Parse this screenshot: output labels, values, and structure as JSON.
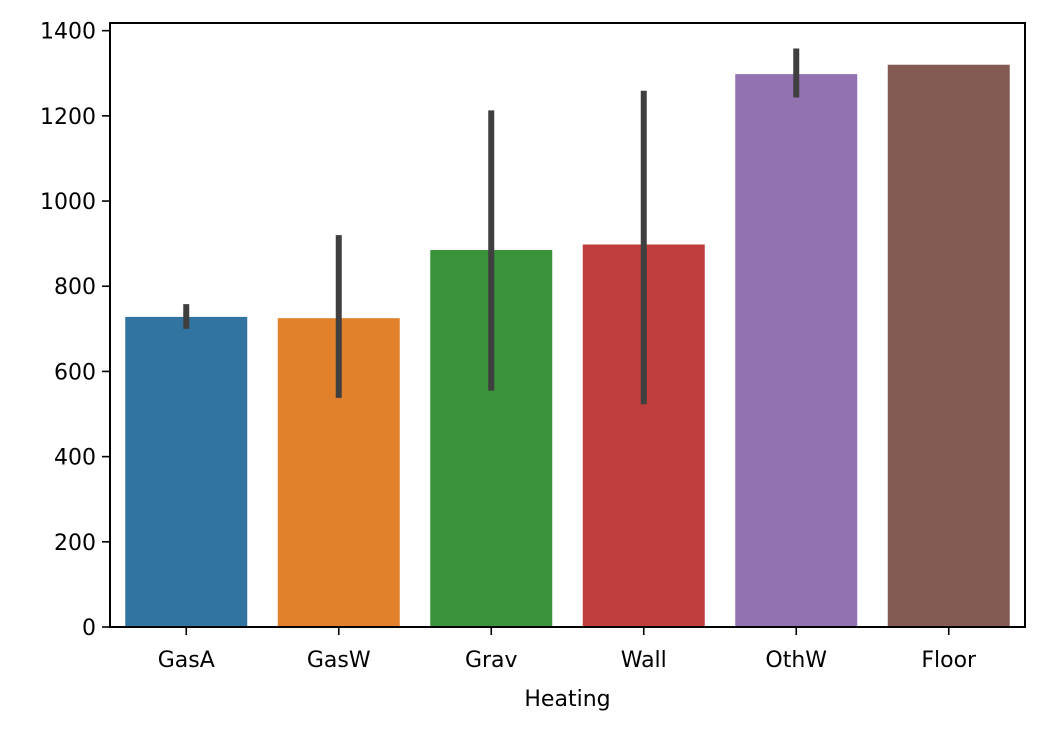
{
  "chart_data": {
    "type": "bar",
    "xlabel": "Heating",
    "ylabel": "",
    "categories": [
      "GasA",
      "GasW",
      "Grav",
      "Wall",
      "OthW",
      "Floor"
    ],
    "values": [
      728,
      725,
      885,
      898,
      1298,
      1320
    ],
    "error_bars": [
      [
        700,
        758
      ],
      [
        538,
        920
      ],
      [
        555,
        1213
      ],
      [
        523,
        1259
      ],
      [
        1243,
        1358
      ],
      null
    ],
    "colors": [
      "#3274a1",
      "#e1812c",
      "#3a923a",
      "#c03d3e",
      "#9372b2",
      "#845b53"
    ],
    "error_color": "#3f3f3f",
    "ylim": [
      0,
      1418
    ],
    "yticks": [
      0,
      200,
      400,
      600,
      800,
      1000,
      1200,
      1400
    ],
    "grid": false,
    "legend": "none"
  }
}
